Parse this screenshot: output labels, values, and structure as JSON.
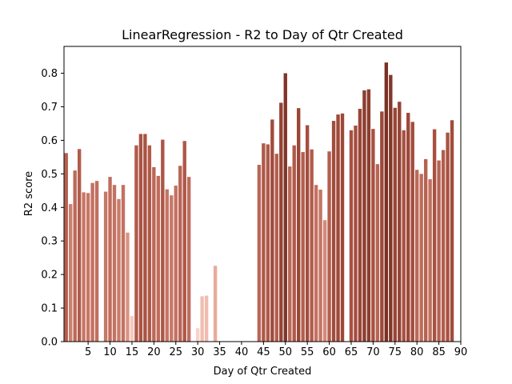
{
  "chart_data": {
    "type": "bar",
    "title": "LinearRegression - R2 to Day of Qtr Created",
    "xlabel": "Day of Qtr Created",
    "ylabel": "R2 score",
    "xlim": [
      -0.5,
      90
    ],
    "ylim": [
      0,
      0.88
    ],
    "xticks": [
      5,
      10,
      15,
      20,
      25,
      30,
      35,
      40,
      45,
      50,
      55,
      60,
      65,
      70,
      75,
      80,
      85,
      90
    ],
    "yticks": [
      0.0,
      0.1,
      0.2,
      0.3,
      0.4,
      0.5,
      0.6,
      0.7,
      0.8
    ],
    "grid": false,
    "legend": "none",
    "color_scale": [
      "#f8d2c8",
      "#e8a898",
      "#c87868",
      "#a85040",
      "#7a3024"
    ],
    "color_encoding": "bar fill darkness increases with R2 value",
    "x": [
      0,
      1,
      2,
      3,
      4,
      5,
      6,
      7,
      9,
      10,
      11,
      12,
      13,
      14,
      15,
      16,
      17,
      18,
      19,
      20,
      21,
      22,
      23,
      24,
      25,
      26,
      27,
      28,
      30,
      31,
      32,
      34,
      44,
      45,
      46,
      47,
      48,
      49,
      50,
      51,
      52,
      53,
      54,
      55,
      56,
      57,
      58,
      59,
      60,
      61,
      62,
      63,
      65,
      66,
      67,
      68,
      69,
      70,
      71,
      72,
      73,
      74,
      75,
      76,
      77,
      78,
      79,
      80,
      81,
      82,
      83,
      84,
      85,
      86,
      87,
      88
    ],
    "values": [
      0.562,
      0.41,
      0.51,
      0.574,
      0.445,
      0.443,
      0.473,
      0.479,
      0.447,
      0.491,
      0.467,
      0.425,
      0.467,
      0.325,
      0.076,
      0.585,
      0.619,
      0.619,
      0.585,
      0.52,
      0.494,
      0.602,
      0.454,
      0.436,
      0.465,
      0.524,
      0.598,
      0.491,
      0.04,
      0.135,
      0.137,
      0.226,
      0.527,
      0.591,
      0.588,
      0.662,
      0.56,
      0.712,
      0.8,
      0.522,
      0.585,
      0.696,
      0.565,
      0.645,
      0.573,
      0.467,
      0.453,
      0.362,
      0.567,
      0.658,
      0.677,
      0.68,
      0.63,
      0.644,
      0.694,
      0.749,
      0.752,
      0.634,
      0.529,
      0.686,
      0.832,
      0.795,
      0.697,
      0.715,
      0.63,
      0.682,
      0.655,
      0.512,
      0.5,
      0.544,
      0.484,
      0.633,
      0.54,
      0.571,
      0.623,
      0.66
    ]
  }
}
